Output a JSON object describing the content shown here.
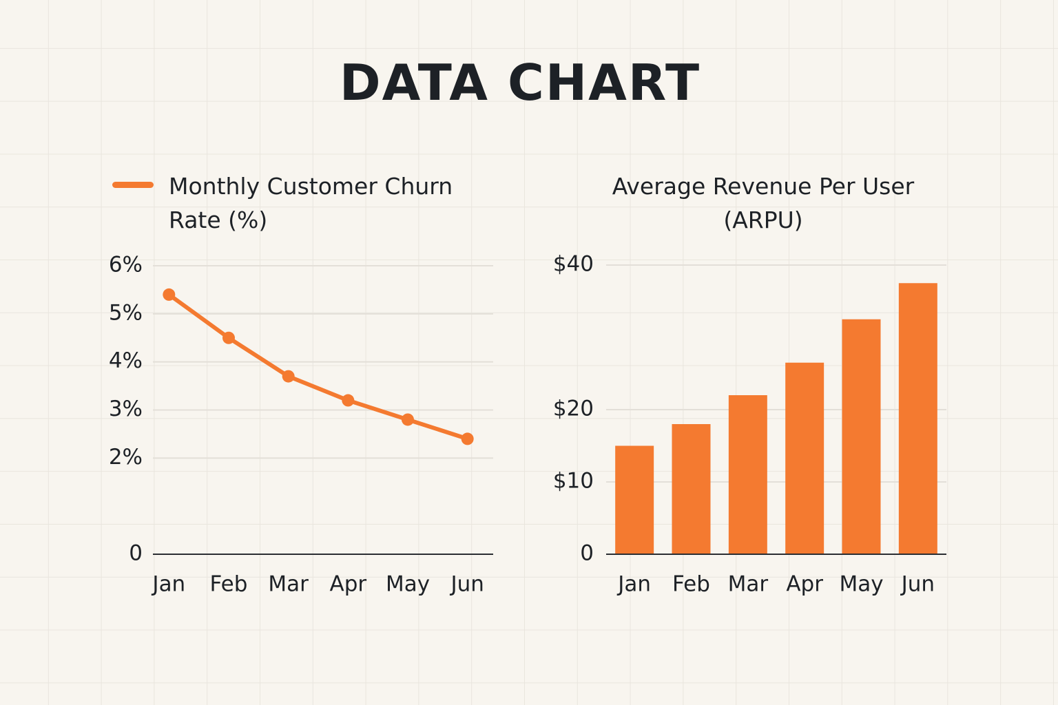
{
  "title": "DATA CHART",
  "chart_data": [
    {
      "type": "line",
      "categories": [
        "Jan",
        "Feb",
        "Mar",
        "Apr",
        "May",
        "Jun"
      ],
      "series": [
        {
          "name": "Monthly Customer Churn Rate (%)",
          "color": "#f47a30",
          "values": [
            5.4,
            4.5,
            3.7,
            3.2,
            2.8,
            2.4
          ]
        }
      ],
      "ylim": [
        0,
        6
      ],
      "yticks": [
        0,
        {
          "value": 2,
          "label": "2%"
        },
        {
          "value": 3,
          "label": "3%"
        },
        {
          "value": 4,
          "label": "4%"
        },
        {
          "value": 5,
          "label": "5%"
        },
        {
          "value": 6,
          "label": "6%"
        }
      ],
      "grid": true,
      "legend": "top-left"
    },
    {
      "type": "bar",
      "title": "Average Revenue Per User (ARPU)",
      "categories": [
        "Jan",
        "Feb",
        "Mar",
        "Apr",
        "May",
        "Jun"
      ],
      "values": [
        15,
        18,
        22,
        26.5,
        32.5,
        37.5
      ],
      "color": "#f47a30",
      "ylim": [
        0,
        40
      ],
      "yticks": [
        0,
        {
          "value": 10,
          "label": "$10"
        },
        {
          "value": 20,
          "label": "$20"
        },
        {
          "value": 40,
          "label": "$40"
        }
      ],
      "grid": true
    }
  ]
}
